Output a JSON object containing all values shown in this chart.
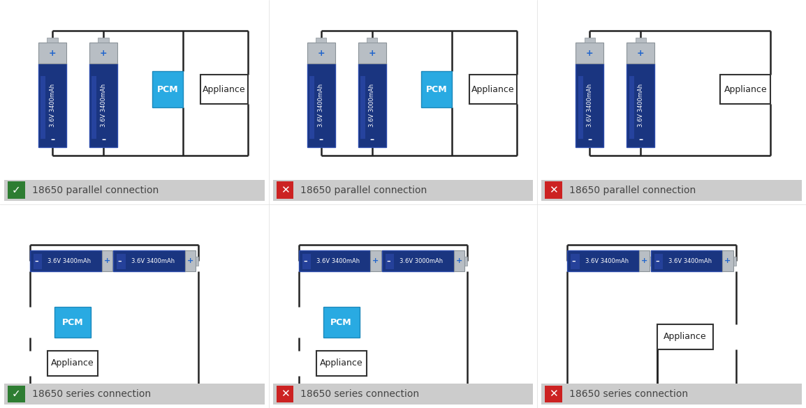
{
  "bg_color": "#ffffff",
  "battery_blue_dark": "#1a3580",
  "battery_blue_mid": "#2a4aaa",
  "battery_blue_light": "#3a5acc",
  "battery_silver": "#b8bec4",
  "battery_silver_dark": "#8a9298",
  "pcm_color": "#29aae2",
  "pcm_border": "#1a88bb",
  "pcm_text": "#ffffff",
  "appliance_bg": "#ffffff",
  "appliance_border": "#333333",
  "wire_color": "#222222",
  "label_bg": "#cccccc",
  "green_bg": "#2e7d32",
  "red_bg": "#cc2222",
  "icon_text": "#ffffff",
  "label_text": "#444444",
  "panel_configs": [
    {
      "col": 0,
      "row": 0,
      "bat1": "3.6V 3400mAh",
      "bat2": "3.6V 3400mAh",
      "has_pcm": true,
      "valid": true,
      "label": "18650 parallel connection"
    },
    {
      "col": 1,
      "row": 0,
      "bat1": "3.6V 3400mAh",
      "bat2": "3.6V 3000mAh",
      "has_pcm": true,
      "valid": false,
      "label": "18650 parallel connection"
    },
    {
      "col": 2,
      "row": 0,
      "bat1": "3.6V 3400mAh",
      "bat2": "3.6V 3400mAh",
      "has_pcm": false,
      "valid": false,
      "label": "18650 parallel connection"
    },
    {
      "col": 0,
      "row": 1,
      "bat1": "3.6V 3400mAh",
      "bat2": "3.6V 3400mAh",
      "has_pcm": true,
      "valid": true,
      "label": "18650 series connection"
    },
    {
      "col": 1,
      "row": 1,
      "bat1": "3.6V 3400mAh",
      "bat2": "3.6V 3000mAh",
      "has_pcm": true,
      "valid": false,
      "label": "18650 series connection"
    },
    {
      "col": 2,
      "row": 1,
      "bat1": "3.6V 3400mAh",
      "bat2": "3.6V 3400mAh",
      "has_pcm": false,
      "valid": false,
      "label": "18650 series connection"
    }
  ]
}
